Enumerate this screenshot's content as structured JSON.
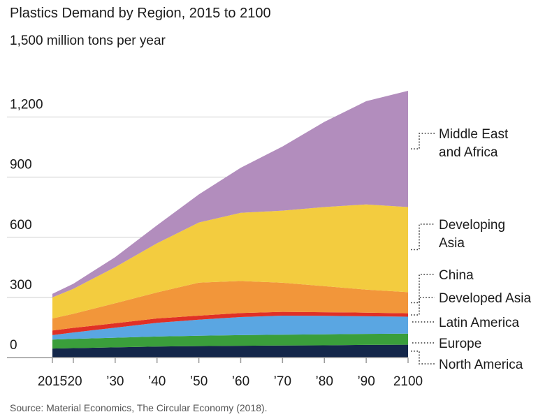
{
  "header": {
    "title": "Plastics Demand by Region, 2015 to 2100",
    "subtitle": "1,500 million tons per year"
  },
  "footer": {
    "source": "Source: Material Economics, The Circular Economy (2018)."
  },
  "chart_data": {
    "type": "area",
    "stacked": true,
    "title": "Plastics Demand by Region, 2015 to 2100",
    "ylabel": "1,500 million tons per year",
    "x": [
      2015,
      2020,
      2030,
      2040,
      2050,
      2060,
      2070,
      2080,
      2090,
      2100
    ],
    "x_tick_values": [
      2015,
      2020,
      2030,
      2040,
      2050,
      2060,
      2070,
      2080,
      2090,
      2100
    ],
    "x_tick_labels": [
      "2015",
      "’20",
      "’30",
      "’40",
      "’50",
      "’60",
      "’70",
      "’80",
      "’90",
      "2100"
    ],
    "y_tick_values": [
      0,
      300,
      600,
      900,
      1200
    ],
    "y_tick_labels": [
      "0",
      "300",
      "600",
      "900",
      "1,200"
    ],
    "ylim": [
      0,
      1500
    ],
    "grid": "horizontal",
    "legend": "right, labels at series end",
    "series": [
      {
        "name": "North America",
        "color": "#14274a",
        "values": [
          45,
          47,
          51,
          55,
          57,
          59,
          60,
          61,
          63,
          64
        ]
      },
      {
        "name": "Europe",
        "color": "#3a9e3b",
        "values": [
          45,
          46,
          48,
          50,
          52,
          53,
          54,
          55,
          55,
          55
        ]
      },
      {
        "name": "Latin America",
        "color": "#5aa6e2",
        "values": [
          22,
          32,
          50,
          68,
          80,
          90,
          95,
          92,
          88,
          85
        ]
      },
      {
        "name": "Developed Asia",
        "color": "#e03026",
        "values": [
          23,
          23,
          22,
          22,
          20,
          20,
          19,
          18,
          18,
          17
        ]
      },
      {
        "name": "China",
        "color": "#f2963a",
        "values": [
          60,
          70,
          100,
          130,
          165,
          160,
          145,
          130,
          115,
          105
        ]
      },
      {
        "name": "Developing Asia",
        "color": "#f3cc3f",
        "values": [
          105,
          125,
          180,
          245,
          300,
          340,
          360,
          395,
          425,
          425
        ]
      },
      {
        "name": "Middle East and Africa",
        "color": "#b28dbd",
        "values": [
          18,
          25,
          50,
          90,
          140,
          225,
          320,
          425,
          515,
          580
        ]
      }
    ],
    "legend_labels": [
      {
        "series": "Middle East and Africa",
        "lines": [
          "Middle East",
          "and Africa"
        ]
      },
      {
        "series": "Developing Asia",
        "lines": [
          "Developing",
          "Asia"
        ]
      },
      {
        "series": "China",
        "lines": [
          "China"
        ]
      },
      {
        "series": "Developed Asia",
        "lines": [
          "Developed Asia"
        ]
      },
      {
        "series": "Latin America",
        "lines": [
          "Latin America"
        ]
      },
      {
        "series": "Europe",
        "lines": [
          "Europe"
        ]
      },
      {
        "series": "North America",
        "lines": [
          "North America"
        ]
      }
    ]
  }
}
